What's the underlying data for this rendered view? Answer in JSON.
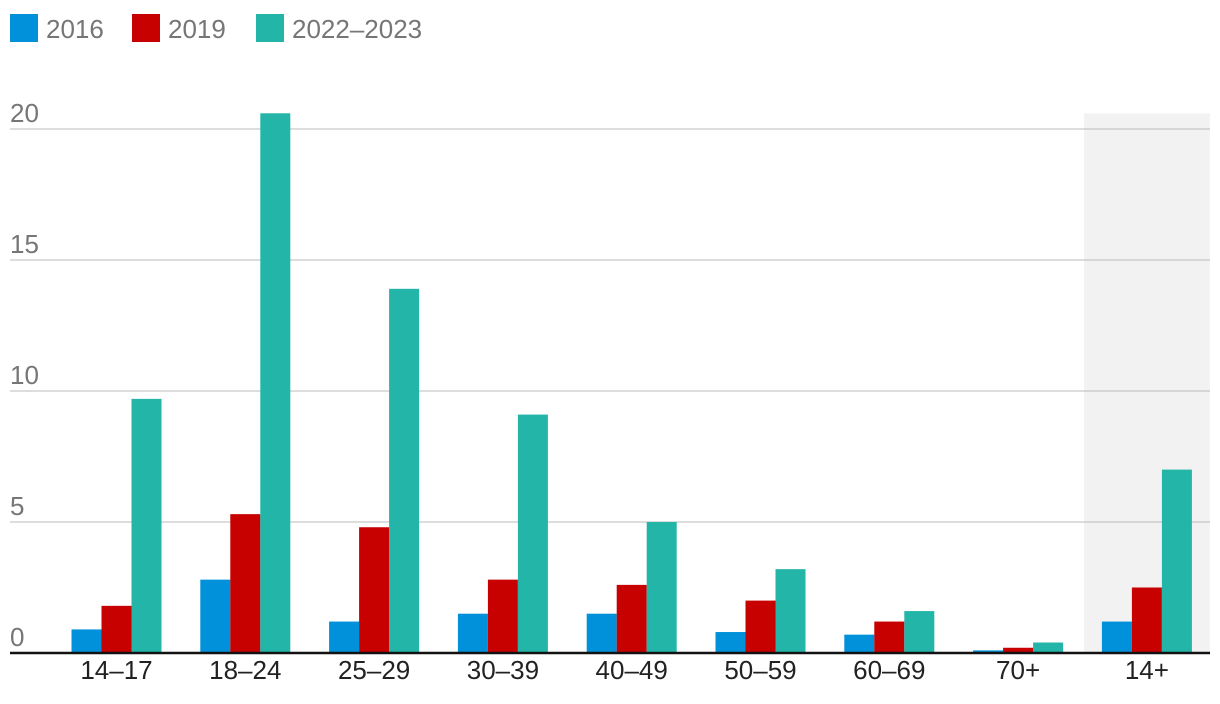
{
  "chart_data": {
    "type": "bar",
    "categories": [
      "14–17",
      "18–24",
      "25–29",
      "30–39",
      "40–49",
      "50–59",
      "60–69",
      "70+",
      "14+"
    ],
    "series": [
      {
        "name": "2016",
        "color": "#0091DA",
        "values": [
          0.9,
          2.8,
          1.2,
          1.5,
          1.5,
          0.8,
          0.7,
          0.1,
          1.2
        ]
      },
      {
        "name": "2019",
        "color": "#C70000",
        "values": [
          1.8,
          5.3,
          4.8,
          2.8,
          2.6,
          2.0,
          1.2,
          0.2,
          2.5
        ]
      },
      {
        "name": "2022–2023",
        "color": "#22B5A8",
        "values": [
          9.7,
          20.6,
          13.9,
          9.1,
          5.0,
          3.2,
          1.6,
          0.4,
          7.0
        ]
      }
    ],
    "yticks": [
      "0",
      "5",
      "10",
      "15",
      "20"
    ],
    "ylim": [
      0,
      20.6
    ],
    "grid": true,
    "legend_position": "top-left",
    "highlighted_category": "14+",
    "highlight_color": "#F2F2F2",
    "gridline_color": "#BBBBBB",
    "axis_color": "#121212"
  }
}
